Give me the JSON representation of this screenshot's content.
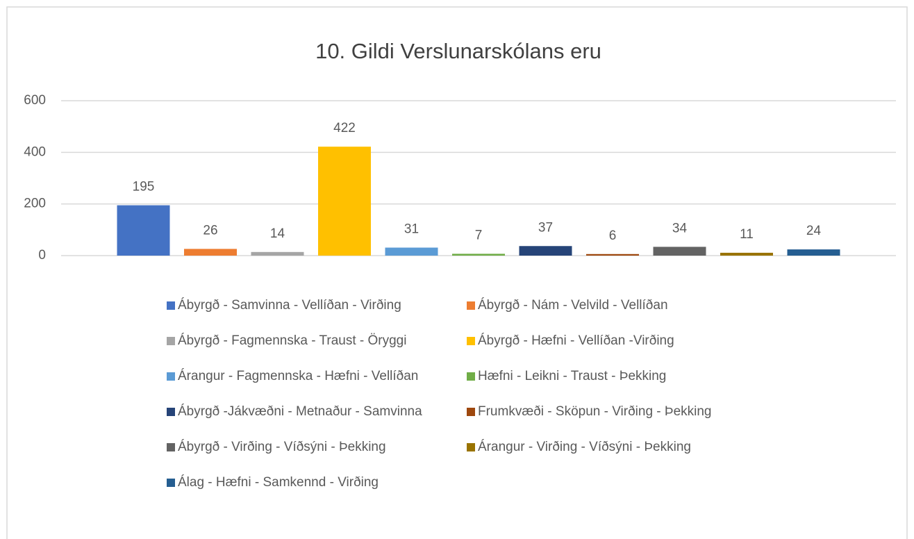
{
  "chart_data": {
    "type": "bar",
    "title": "10. Gildi Verslunarskólans eru",
    "categories": [
      null
    ],
    "series": [
      {
        "name": "Ábyrgð - Samvinna - Vellíðan - Virðing",
        "color": "#4472c4",
        "values": [
          195
        ]
      },
      {
        "name": "Ábyrgð - Nám - Velvild - Vellíðan",
        "color": "#ed7d31",
        "values": [
          26
        ]
      },
      {
        "name": "Ábyrgð - Fagmennska - Traust - Öryggi",
        "color": "#a5a5a5",
        "values": [
          14
        ]
      },
      {
        "name": "Ábyrgð - Hæfni - Vellíðan -Virðing",
        "color": "#ffc000",
        "values": [
          422
        ]
      },
      {
        "name": "Árangur - Fagmennska - Hæfni - Vellíðan",
        "color": "#5b9bd5",
        "values": [
          31
        ]
      },
      {
        "name": "Hæfni - Leikni - Traust - Þekking",
        "color": "#70ad47",
        "values": [
          7
        ]
      },
      {
        "name": "Ábyrgð -Jákvæðni - Metnaður - Samvinna",
        "color": "#264478",
        "values": [
          37
        ]
      },
      {
        "name": "Frumkvæði - Sköpun - Virðing - Þekking",
        "color": "#9e480e",
        "values": [
          6
        ]
      },
      {
        "name": "Ábyrgð - Virðing - Víðsýni - Þekking",
        "color": "#636363",
        "values": [
          34
        ]
      },
      {
        "name": "Árangur - Virðing - Víðsýni - Þekking",
        "color": "#997300",
        "values": [
          11
        ]
      },
      {
        "name": "Álag - Hæfni - Samkennd - Virðing",
        "color": "#255e91",
        "values": [
          24
        ]
      }
    ],
    "ylim": [
      0,
      600
    ],
    "yticks": [
      0,
      200,
      400,
      600
    ],
    "grid": true,
    "legend": "bottom"
  }
}
